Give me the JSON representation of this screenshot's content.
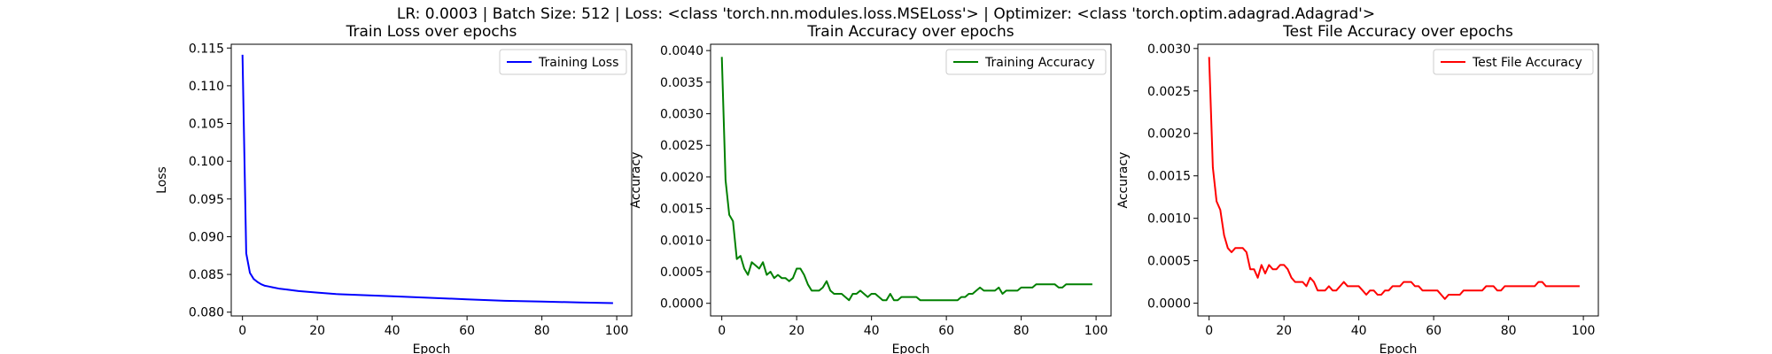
{
  "suptitle": "LR: 0.0003 | Batch Size: 512 | Loss: <class 'torch.nn.modules.loss.MSELoss'> | Optimizer: <class 'torch.optim.adagrad.Adagrad'>",
  "chart_data": [
    {
      "type": "line",
      "title": "Train Loss over epochs",
      "xlabel": "Epoch",
      "ylabel": "Loss",
      "xlim": [
        -3,
        104
      ],
      "ylim": [
        0.0795,
        0.1155
      ],
      "xticks": [
        0,
        20,
        40,
        60,
        80,
        100
      ],
      "yticks": [
        0.08,
        0.085,
        0.09,
        0.095,
        0.1,
        0.105,
        0.11,
        0.115
      ],
      "ytick_labels": [
        "0.080",
        "0.085",
        "0.090",
        "0.095",
        "0.100",
        "0.105",
        "0.110",
        "0.115"
      ],
      "grid": false,
      "legend_position": "top-right",
      "series": [
        {
          "name": "Training Loss",
          "color": "#0000ff",
          "x": [
            0,
            1,
            2,
            3,
            4,
            5,
            6,
            7,
            8,
            10,
            12,
            15,
            20,
            25,
            30,
            40,
            50,
            60,
            70,
            80,
            90,
            99
          ],
          "y": [
            0.1141,
            0.0878,
            0.0852,
            0.0844,
            0.084,
            0.0837,
            0.0835,
            0.0834,
            0.0833,
            0.0831,
            0.083,
            0.0828,
            0.0826,
            0.0824,
            0.0823,
            0.0821,
            0.0819,
            0.0817,
            0.0815,
            0.0814,
            0.0813,
            0.0812
          ]
        }
      ]
    },
    {
      "type": "line",
      "title": "Train Accuracy over epochs",
      "xlabel": "Epoch",
      "ylabel": "Accuracy",
      "xlim": [
        -3,
        104
      ],
      "ylim": [
        -0.0002,
        0.0041
      ],
      "xticks": [
        0,
        20,
        40,
        60,
        80,
        100
      ],
      "yticks": [
        0.0,
        0.0005,
        0.001,
        0.0015,
        0.002,
        0.0025,
        0.003,
        0.0035,
        0.004
      ],
      "ytick_labels": [
        "0.0000",
        "0.0005",
        "0.0010",
        "0.0015",
        "0.0020",
        "0.0025",
        "0.0030",
        "0.0035",
        "0.0040"
      ],
      "grid": false,
      "legend_position": "top-right",
      "series": [
        {
          "name": "Training Accuracy",
          "color": "#008000",
          "x": [
            0,
            1,
            2,
            3,
            4,
            5,
            6,
            7,
            8,
            9,
            10,
            11,
            12,
            13,
            14,
            15,
            16,
            17,
            18,
            19,
            20,
            21,
            22,
            23,
            24,
            25,
            26,
            27,
            28,
            29,
            30,
            31,
            32,
            33,
            34,
            35,
            36,
            37,
            38,
            39,
            40,
            41,
            42,
            43,
            44,
            45,
            46,
            47,
            48,
            49,
            50,
            51,
            52,
            53,
            54,
            55,
            56,
            57,
            58,
            59,
            60,
            61,
            62,
            63,
            64,
            65,
            66,
            67,
            68,
            69,
            70,
            71,
            72,
            73,
            74,
            75,
            76,
            77,
            78,
            79,
            80,
            81,
            82,
            83,
            84,
            85,
            86,
            87,
            88,
            89,
            90,
            91,
            92,
            93,
            94,
            95,
            96,
            97,
            98,
            99
          ],
          "y": [
            0.0039,
            0.00195,
            0.0014,
            0.0013,
            0.0007,
            0.00075,
            0.00055,
            0.00045,
            0.00065,
            0.0006,
            0.00055,
            0.00065,
            0.00045,
            0.0005,
            0.0004,
            0.00045,
            0.0004,
            0.0004,
            0.00035,
            0.0004,
            0.00055,
            0.00055,
            0.00045,
            0.0003,
            0.0002,
            0.0002,
            0.0002,
            0.00025,
            0.00035,
            0.0002,
            0.00015,
            0.00015,
            0.00015,
            0.0001,
            5e-05,
            0.00015,
            0.00015,
            0.0002,
            0.00015,
            0.0001,
            0.00015,
            0.00015,
            0.0001,
            5e-05,
            5e-05,
            0.00015,
            5e-05,
            5e-05,
            0.0001,
            0.0001,
            0.0001,
            0.0001,
            0.0001,
            5e-05,
            5e-05,
            5e-05,
            5e-05,
            5e-05,
            5e-05,
            5e-05,
            5e-05,
            5e-05,
            5e-05,
            5e-05,
            0.0001,
            0.0001,
            0.00015,
            0.00015,
            0.0002,
            0.00025,
            0.0002,
            0.0002,
            0.0002,
            0.0002,
            0.00025,
            0.00015,
            0.0002,
            0.0002,
            0.0002,
            0.0002,
            0.00025,
            0.00025,
            0.00025,
            0.00025,
            0.0003,
            0.0003,
            0.0003,
            0.0003,
            0.0003,
            0.0003,
            0.00025,
            0.00025,
            0.0003,
            0.0003,
            0.0003,
            0.0003,
            0.0003,
            0.0003,
            0.0003,
            0.0003
          ]
        }
      ]
    },
    {
      "type": "line",
      "title": "Test File Accuracy over epochs",
      "xlabel": "Epoch",
      "ylabel": "Accuracy",
      "xlim": [
        -3,
        104
      ],
      "ylim": [
        -0.00015,
        0.00305
      ],
      "xticks": [
        0,
        20,
        40,
        60,
        80,
        100
      ],
      "yticks": [
        0.0,
        0.0005,
        0.001,
        0.0015,
        0.002,
        0.0025,
        0.003
      ],
      "ytick_labels": [
        "0.0000",
        "0.0005",
        "0.0010",
        "0.0015",
        "0.0020",
        "0.0025",
        "0.0030"
      ],
      "grid": false,
      "legend_position": "top-right",
      "series": [
        {
          "name": "Test File Accuracy",
          "color": "#ff0000",
          "x": [
            0,
            1,
            2,
            3,
            4,
            5,
            6,
            7,
            8,
            9,
            10,
            11,
            12,
            13,
            14,
            15,
            16,
            17,
            18,
            19,
            20,
            21,
            22,
            23,
            24,
            25,
            26,
            27,
            28,
            29,
            30,
            31,
            32,
            33,
            34,
            35,
            36,
            37,
            38,
            39,
            40,
            41,
            42,
            43,
            44,
            45,
            46,
            47,
            48,
            49,
            50,
            51,
            52,
            53,
            54,
            55,
            56,
            57,
            58,
            59,
            60,
            61,
            62,
            63,
            64,
            65,
            66,
            67,
            68,
            69,
            70,
            71,
            72,
            73,
            74,
            75,
            76,
            77,
            78,
            79,
            80,
            81,
            82,
            83,
            84,
            85,
            86,
            87,
            88,
            89,
            90,
            91,
            92,
            93,
            94,
            95,
            96,
            97,
            98,
            99
          ],
          "y": [
            0.0029,
            0.0016,
            0.0012,
            0.0011,
            0.0008,
            0.00065,
            0.0006,
            0.00065,
            0.00065,
            0.00065,
            0.0006,
            0.0004,
            0.0004,
            0.0003,
            0.00045,
            0.00035,
            0.00045,
            0.0004,
            0.0004,
            0.00045,
            0.00045,
            0.0004,
            0.0003,
            0.00025,
            0.00025,
            0.00025,
            0.0002,
            0.0003,
            0.00025,
            0.00015,
            0.00015,
            0.00015,
            0.0002,
            0.00015,
            0.00015,
            0.0002,
            0.00025,
            0.0002,
            0.0002,
            0.0002,
            0.0002,
            0.00015,
            0.0001,
            0.00015,
            0.00015,
            0.0001,
            0.0001,
            0.00015,
            0.00015,
            0.0002,
            0.0002,
            0.0002,
            0.00025,
            0.00025,
            0.00025,
            0.0002,
            0.0002,
            0.00015,
            0.00015,
            0.00015,
            0.00015,
            0.00015,
            0.0001,
            5e-05,
            0.0001,
            0.0001,
            0.0001,
            0.0001,
            0.00015,
            0.00015,
            0.00015,
            0.00015,
            0.00015,
            0.00015,
            0.0002,
            0.0002,
            0.0002,
            0.00015,
            0.00015,
            0.0002,
            0.0002,
            0.0002,
            0.0002,
            0.0002,
            0.0002,
            0.0002,
            0.0002,
            0.0002,
            0.00025,
            0.00025,
            0.0002,
            0.0002,
            0.0002,
            0.0002,
            0.0002,
            0.0002,
            0.0002,
            0.0002,
            0.0002,
            0.0002
          ]
        }
      ]
    }
  ]
}
